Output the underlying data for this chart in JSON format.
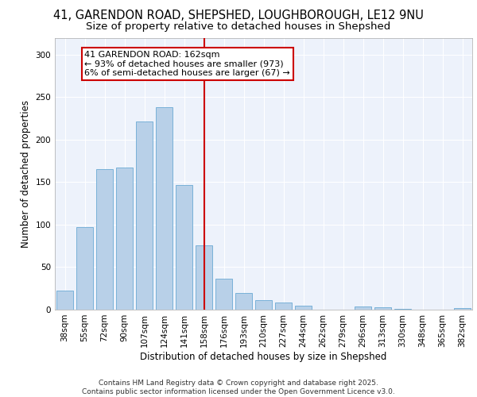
{
  "title_line1": "41, GARENDON ROAD, SHEPSHED, LOUGHBOROUGH, LE12 9NU",
  "title_line2": "Size of property relative to detached houses in Shepshed",
  "xlabel": "Distribution of detached houses by size in Shepshed",
  "ylabel": "Number of detached properties",
  "categories": [
    "38sqm",
    "55sqm",
    "72sqm",
    "90sqm",
    "107sqm",
    "124sqm",
    "141sqm",
    "158sqm",
    "176sqm",
    "193sqm",
    "210sqm",
    "227sqm",
    "244sqm",
    "262sqm",
    "279sqm",
    "296sqm",
    "313sqm",
    "330sqm",
    "348sqm",
    "365sqm",
    "382sqm"
  ],
  "values": [
    22,
    97,
    165,
    167,
    221,
    238,
    147,
    76,
    36,
    20,
    11,
    8,
    5,
    0,
    0,
    4,
    3,
    1,
    0,
    0,
    2
  ],
  "bar_color": "#b8d0e8",
  "bar_edge_color": "#6aaad4",
  "vline_x": 7,
  "vline_color": "#cc0000",
  "annotation_text": "41 GARENDON ROAD: 162sqm\n← 93% of detached houses are smaller (973)\n6% of semi-detached houses are larger (67) →",
  "annotation_box_color": "#ffffff",
  "annotation_box_edge": "#cc0000",
  "ylim": [
    0,
    320
  ],
  "yticks": [
    0,
    50,
    100,
    150,
    200,
    250,
    300
  ],
  "background_color": "#edf2fb",
  "footer_text": "Contains HM Land Registry data © Crown copyright and database right 2025.\nContains public sector information licensed under the Open Government Licence v3.0.",
  "title_fontsize": 10.5,
  "subtitle_fontsize": 9.5,
  "axis_label_fontsize": 8.5,
  "tick_fontsize": 7.5,
  "annotation_fontsize": 8,
  "footer_fontsize": 6.5
}
